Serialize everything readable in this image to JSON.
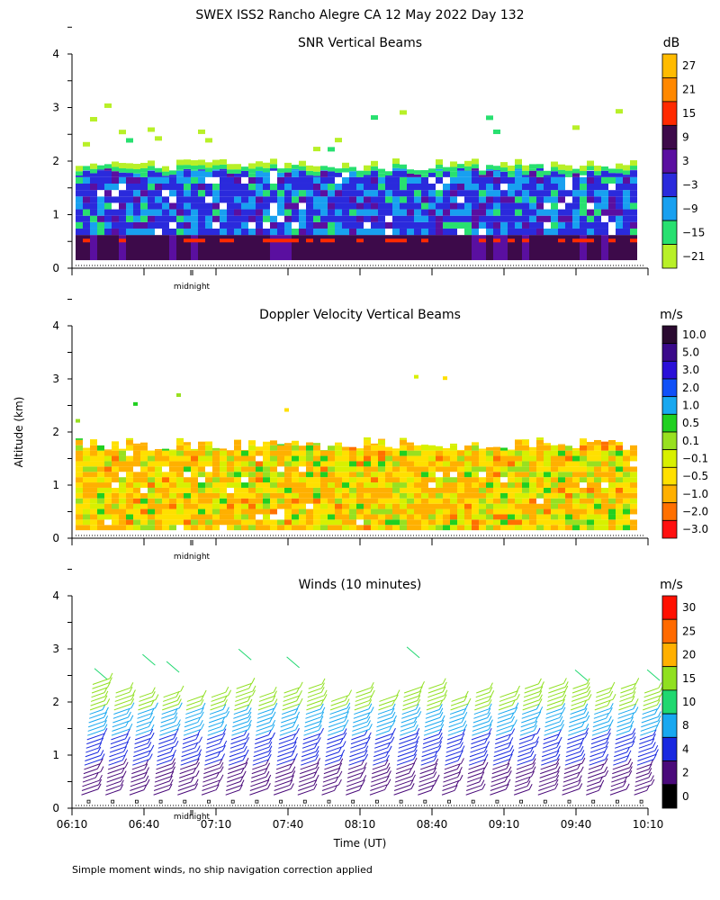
{
  "figure_title": "SWEX ISS2 Rancho Alegre CA  12 May 2022 Day 132",
  "ylabel": "Altitude (km)",
  "xlabel": "Time (UT)",
  "footnote": "Simple moment winds, no ship navigation correction applied",
  "chart_data": [
    {
      "type": "heatmap",
      "title": "SNR Vertical Beams",
      "ylim": [
        0,
        4
      ],
      "yticks": [
        "0",
        "1",
        "2",
        "3",
        "4"
      ],
      "midnight_label": "midnight",
      "colorbar": {
        "unit": "dB",
        "labels": [
          "27",
          "21",
          "15",
          "9",
          "3",
          "−3",
          "−9",
          "−15",
          "−21"
        ],
        "colors": [
          "#ffbb00",
          "#ff8800",
          "#ff2a00",
          "#3d0a4a",
          "#5a0fa0",
          "#2a2adc",
          "#18a0f0",
          "#28e070",
          "#b8f028"
        ]
      }
    },
    {
      "type": "heatmap",
      "title": "Doppler Velocity Vertical Beams",
      "ylim": [
        0,
        4
      ],
      "yticks": [
        "0",
        "1",
        "2",
        "3",
        "4"
      ],
      "midnight_label": "midnight",
      "colorbar": {
        "unit": "m/s",
        "labels": [
          "10.0",
          "5.0",
          "3.0",
          "2.0",
          "1.0",
          "0.5",
          "0.1",
          "−0.1",
          "−0.5",
          "−1.0",
          "−2.0",
          "−3.0"
        ],
        "colors": [
          "#2a0a30",
          "#3a0a8a",
          "#2a10d8",
          "#1050f8",
          "#18a8f0",
          "#20d020",
          "#98e020",
          "#d8f000",
          "#ffe000",
          "#ffb000",
          "#ff7000",
          "#ff1010"
        ]
      }
    },
    {
      "type": "wind-barbs",
      "title": "Winds (10 minutes)",
      "ylim": [
        0,
        4
      ],
      "yticks": [
        "0",
        "1",
        "2",
        "3",
        "4"
      ],
      "midnight_label": "midnight",
      "xtick_labels": [
        "06:10",
        "06:40",
        "07:10",
        "07:40",
        "08:10",
        "08:40",
        "09:10",
        "09:40",
        "10:10"
      ],
      "colorbar": {
        "unit": "m/s",
        "labels": [
          "30",
          "25",
          "20",
          "15",
          "10",
          "8",
          "4",
          "2",
          "0"
        ],
        "colors": [
          "#ff1000",
          "#ff6a00",
          "#ffb000",
          "#90e020",
          "#20d870",
          "#18a8f0",
          "#1828e0",
          "#4a0a7a",
          "#000000"
        ]
      }
    }
  ]
}
